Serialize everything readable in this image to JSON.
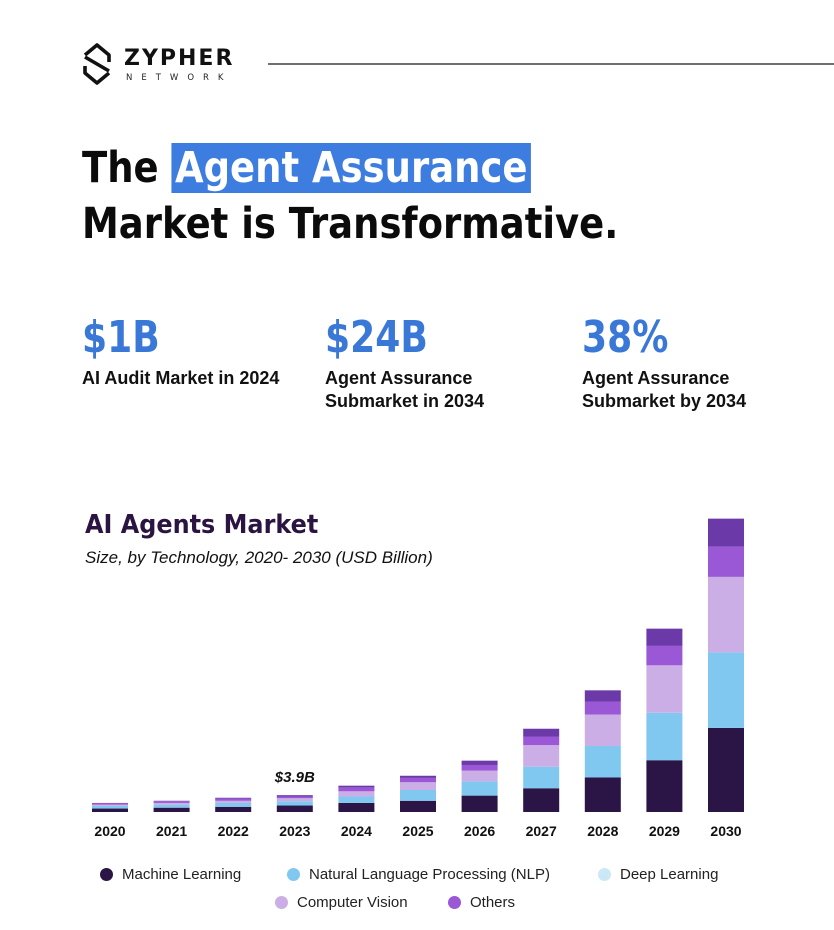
{
  "brand": {
    "name": "ZYPHER",
    "sub": "NETWORK"
  },
  "headline": {
    "pre": "The ",
    "highlight": "Agent Assurance",
    "line2": "Market is Transformative."
  },
  "stats": [
    {
      "value": "$1B",
      "label": "AI Audit Market in 2024"
    },
    {
      "value": "$24B",
      "label": "Agent Assurance Submarket in 2034"
    },
    {
      "value": "38%",
      "label": "Agent Assurance Submarket by 2034"
    }
  ],
  "chart_data": {
    "type": "bar",
    "stacked": true,
    "title": "AI Agents Market",
    "subtitle": "Size, by Technology, 2020- 2030 (USD Billion)",
    "categories": [
      "2020",
      "2021",
      "2022",
      "2023",
      "2024",
      "2025",
      "2026",
      "2027",
      "2028",
      "2029",
      "2030"
    ],
    "series": [
      {
        "name": "Machine Learning",
        "color": "#2b1446",
        "values": [
          0.8,
          1.0,
          1.2,
          1.5,
          2.1,
          2.6,
          3.8,
          5.5,
          8.0,
          12.0,
          19.5
        ]
      },
      {
        "name": "Natural Language Processing (NLP)",
        "color": "#80c8f0",
        "values": [
          0.6,
          0.7,
          0.9,
          1.0,
          1.5,
          2.5,
          3.3,
          5.0,
          7.3,
          11.0,
          17.5
        ]
      },
      {
        "name": "Deep Learning",
        "color": "#cbe8f7",
        "values": [
          0,
          0,
          0,
          0,
          0,
          0,
          0,
          0,
          0,
          0,
          0
        ]
      },
      {
        "name": "Computer Vision",
        "color": "#ccaee6",
        "values": [
          0.3,
          0.4,
          0.5,
          0.7,
          1.2,
          1.8,
          2.5,
          5.0,
          7.3,
          11.0,
          17.5
        ]
      },
      {
        "name": "Others",
        "color": "#9a58d6",
        "values": [
          0.3,
          0.4,
          0.5,
          0.4,
          0.9,
          1.0,
          1.3,
          2.0,
          3.0,
          4.5,
          7.0
        ]
      },
      {
        "name": "",
        "color": "#6b3aa8",
        "values": [
          0.1,
          0.1,
          0.2,
          0.3,
          0.4,
          0.5,
          1.0,
          1.8,
          2.6,
          4.0,
          6.5
        ]
      }
    ],
    "annotations": [
      {
        "category": "2023",
        "text": "$3.9B"
      }
    ],
    "ylim": [
      0,
      70
    ],
    "grid": false,
    "legend": "bottom"
  },
  "colors": {
    "accent": "#3a78d8",
    "highlight_bg": "#3d7de0",
    "title": "#2b1442"
  }
}
